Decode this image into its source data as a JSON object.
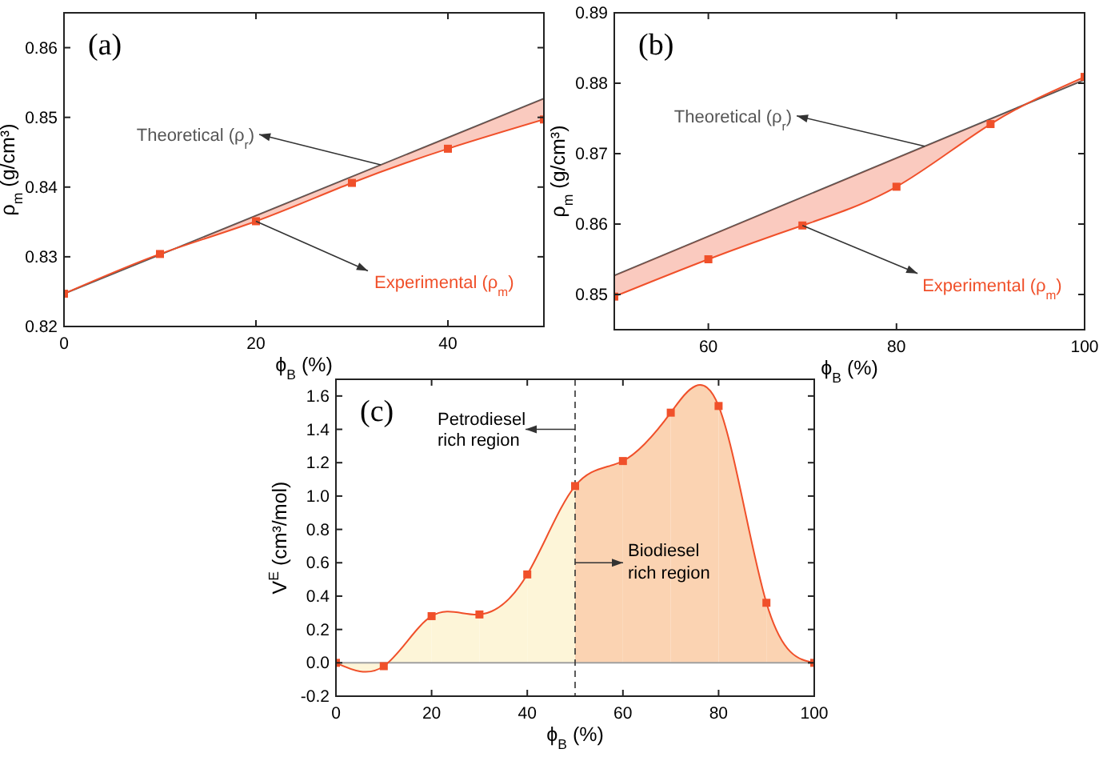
{
  "chart_data": [
    {
      "type": "line",
      "title": "(a)",
      "xlabel": "ϕ$_{B}$ (%)",
      "ylabel": "ρ$_{m}$ (g/cm³)",
      "xlim": [
        0,
        50
      ],
      "xticks": [
        0,
        20,
        40
      ],
      "ylim": [
        0.82,
        0.865
      ],
      "yticks": [
        0.82,
        0.83,
        0.84,
        0.85,
        0.86
      ],
      "marker": "square",
      "series": [
        {
          "name": "Theoretical (ρ$_{r}$)",
          "color": "#555555",
          "x": [
            0,
            50
          ],
          "values": [
            0.8247,
            0.8527
          ],
          "marker": "none"
        },
        {
          "name": "Experimental (ρ$_{m}$)",
          "color": "#f0502a",
          "x": [
            0,
            10,
            20,
            30,
            40,
            50
          ],
          "values": [
            0.8247,
            0.8304,
            0.8351,
            0.8406,
            0.8455,
            0.8497
          ],
          "lower": [
            0.8247,
            0.8304,
            0.8351,
            0.8406,
            0.8455,
            0.8497
          ],
          "upper": [
            0.8247,
            0.8303,
            0.8359,
            0.8415,
            0.8471,
            0.8527
          ]
        }
      ]
    },
    {
      "type": "line",
      "title": "(b)",
      "xlabel": "ϕ$_{B}$ (%)",
      "ylabel": "ρ$_{m}$ (g/cm³)",
      "xlim": [
        50,
        100
      ],
      "xticks": [
        60,
        80,
        100
      ],
      "ylim": [
        0.845,
        0.89
      ],
      "yticks": [
        0.85,
        0.86,
        0.87,
        0.88,
        0.89
      ],
      "marker": "square",
      "series": [
        {
          "name": "Theoretical (ρ$_{r}$)",
          "color": "#555555",
          "x": [
            50,
            100
          ],
          "values": [
            0.8527,
            0.8805
          ],
          "marker": "none"
        },
        {
          "name": "Experimental (ρ$_{m}$)",
          "color": "#f0502a",
          "x": [
            50,
            60,
            70,
            80,
            90,
            100
          ],
          "values": [
            0.8497,
            0.855,
            0.8598,
            0.8653,
            0.8742,
            0.8809
          ],
          "lower": [
            0.8497,
            0.855,
            0.8598,
            0.8653,
            0.8742,
            0.8809
          ],
          "upper": [
            0.8527,
            0.8583,
            0.8638,
            0.8694,
            0.8749,
            0.8805
          ]
        }
      ]
    },
    {
      "type": "area",
      "title": "(c)",
      "xlabel": "ϕ$_{B}$ (%)",
      "ylabel": "V$^{E}$ (cm³/mol)",
      "xlim": [
        0,
        100
      ],
      "xticks": [
        0,
        20,
        40,
        60,
        80,
        100
      ],
      "ylim": [
        -0.2,
        1.7
      ],
      "yticks": [
        -0.2,
        {
          "value": 0,
          "label": "0.0"
        },
        0.2,
        0.4,
        0.6,
        0.8,
        {
          "value": 1,
          "label": "1.0"
        },
        1.2,
        1.4,
        1.6
      ],
      "marker": "square",
      "x": [
        0,
        10,
        20,
        30,
        40,
        50,
        60,
        70,
        80,
        90,
        100
      ],
      "series": [
        {
          "color": "#f0502a",
          "colors": [
            "#fdf5d8",
            "#fdf5d8",
            "#fdf5d8",
            "#fdf5d8",
            "#fdf5d8",
            "#fbd3b2",
            "#fbd3b2",
            "#fbd3b2",
            "#fbd3b2",
            "#fbd3b2",
            "#fbd3b2"
          ],
          "values": [
            0,
            -0.02,
            0.28,
            0.29,
            0.53,
            1.06,
            1.21,
            1.5,
            1.54,
            0.36,
            0
          ]
        }
      ],
      "ref_lines": [
        {
          "axis": "y",
          "value": 0,
          "color": "#a0a0a0",
          "line_style": "solid"
        },
        {
          "axis": "x",
          "value": 50,
          "color": "#333333",
          "line_style": "dashed"
        }
      ],
      "annotations": [
        {
          "text": "Petrodiesel rich region",
          "x": 50,
          "y": 1.4
        },
        {
          "text": "Biodiesel rich region",
          "x": 50,
          "y": 0.6
        }
      ]
    }
  ]
}
